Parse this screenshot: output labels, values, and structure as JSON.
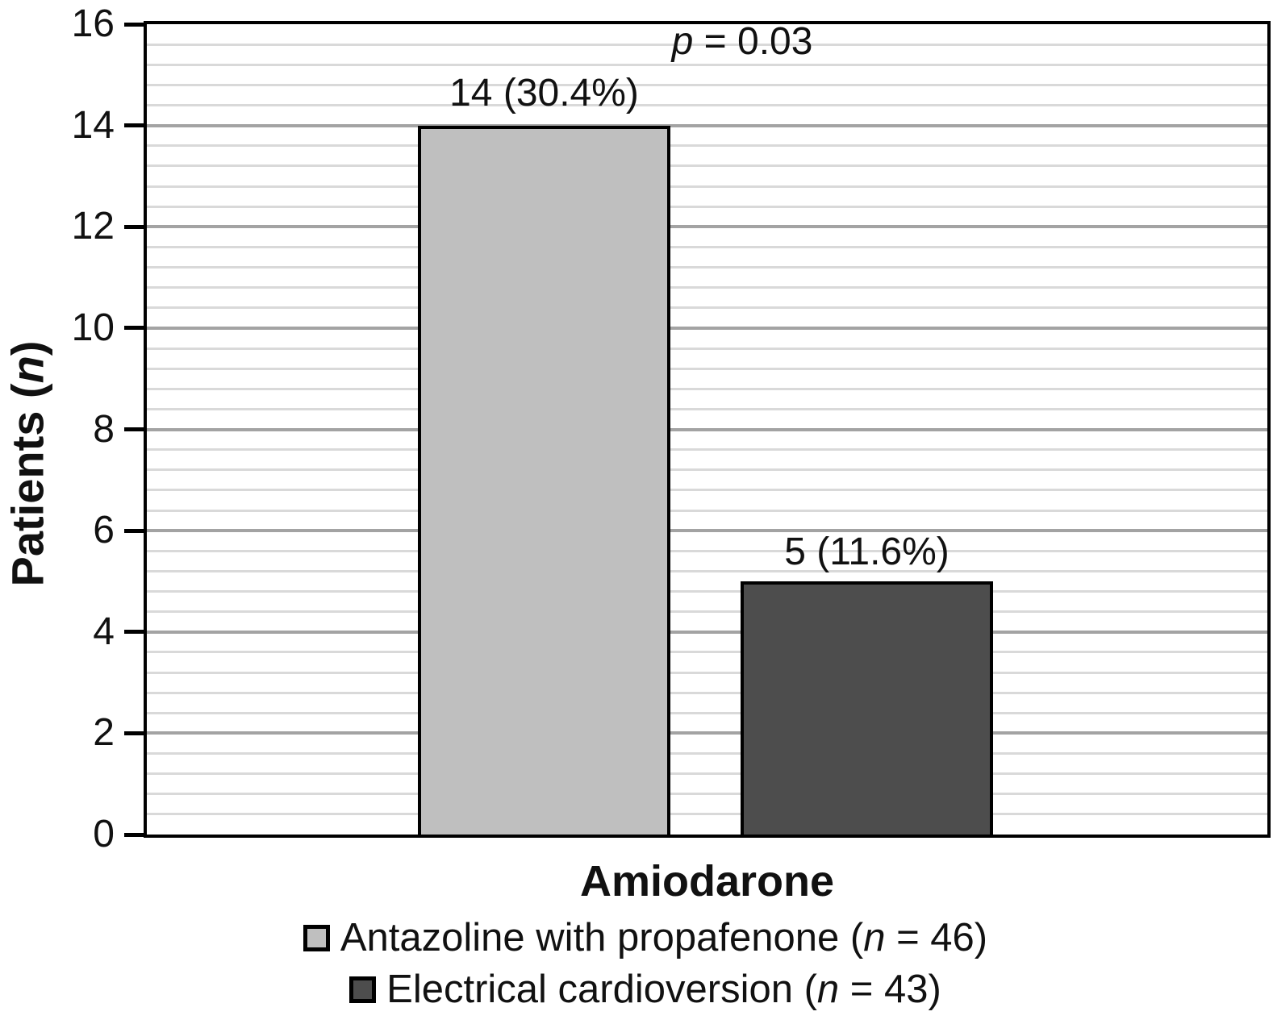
{
  "chart_data": {
    "type": "bar",
    "title": "",
    "xlabel_category": "Amiodarone",
    "ylabel": "Patients (n)",
    "ylim": [
      0,
      16
    ],
    "ytick_step": 2,
    "minor_gridline_step": 0.4,
    "yticks": [
      0,
      2,
      4,
      6,
      8,
      10,
      12,
      14,
      16
    ],
    "grid": "horizontal",
    "legend_position": "bottom",
    "annotation": "p = 0.03",
    "categories": [
      "Amiodarone"
    ],
    "series": [
      {
        "name": "Antazoline with propafenone (n = 46)",
        "group_n": 46,
        "value": 14,
        "percent": 30.4,
        "bar_label": "14 (30.4%)",
        "color": "#bfbfbf"
      },
      {
        "name": "Electrical cardioversion (n = 43)",
        "group_n": 43,
        "value": 5,
        "percent": 11.6,
        "bar_label": "5 (11.6%)",
        "color": "#4d4d4d"
      }
    ]
  },
  "labels": {
    "y_title": {
      "pre": "Patients (",
      "italic": "n",
      "post": ")"
    },
    "x_category": "Amiodarone",
    "p_annotation": {
      "italic": "p",
      "post": " = 0.03"
    },
    "legend": [
      {
        "pre": "Antazoline with propafenone (",
        "italic": "n",
        "post": " = 46)"
      },
      {
        "pre": "Electrical cardioversion (",
        "italic": "n",
        "post": " = 43)"
      }
    ]
  },
  "colors": {
    "background": "#ffffff",
    "frame": "#000000",
    "text": "#111111",
    "grid_minor": "#d9d9d9",
    "grid_major": "#a3a3a3",
    "bar_light": "#bfbfbf",
    "bar_dark": "#4d4d4d"
  }
}
